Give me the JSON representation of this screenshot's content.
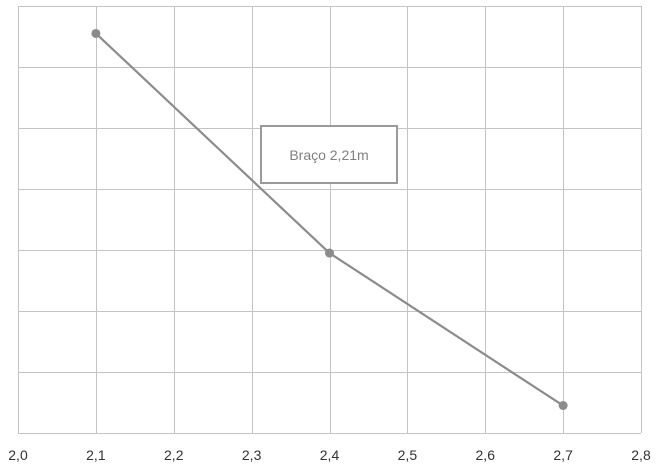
{
  "chart_data": {
    "type": "line",
    "title": "",
    "xlabel": "",
    "ylabel": "",
    "xlim": [
      2.0,
      2.8
    ],
    "ylim": [
      0,
      7
    ],
    "grid": true,
    "x_ticks": [
      2.0,
      2.1,
      2.2,
      2.3,
      2.4,
      2.5,
      2.6,
      2.7,
      2.8
    ],
    "x_tick_labels": [
      "2,0",
      "2,1",
      "2,2",
      "2,3",
      "2,4",
      "2,5",
      "2,6",
      "2,7",
      "2,8"
    ],
    "y_gridlines": 7,
    "legend_position": "center",
    "series": [
      {
        "name": "Braço 2,21m",
        "color": "#8c8c8c",
        "x": [
          2.1,
          2.4,
          2.7
        ],
        "y": [
          6.55,
          2.95,
          0.45
        ]
      }
    ]
  }
}
